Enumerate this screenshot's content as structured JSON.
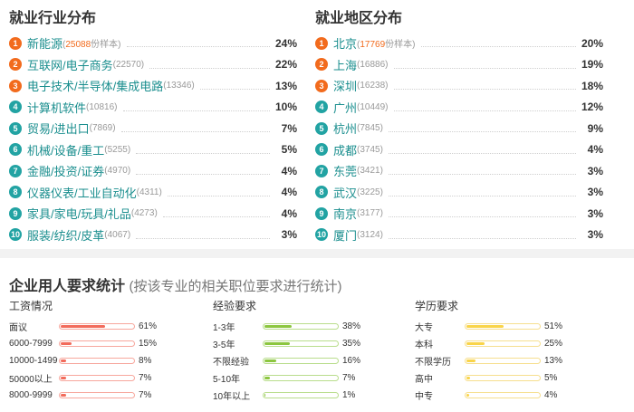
{
  "industry": {
    "title": "就业行业分布",
    "items": [
      {
        "rank": "1",
        "name": "新能源",
        "count": "25088",
        "unit": "份样本",
        "pct": "24%"
      },
      {
        "rank": "2",
        "name": "互联网/电子商务",
        "count": "22570",
        "unit": "",
        "pct": "22%"
      },
      {
        "rank": "3",
        "name": "电子技术/半导体/集成电路",
        "count": "13346",
        "unit": "",
        "pct": "13%"
      },
      {
        "rank": "4",
        "name": "计算机软件",
        "count": "10816",
        "unit": "",
        "pct": "10%"
      },
      {
        "rank": "5",
        "name": "贸易/进出口",
        "count": "7869",
        "unit": "",
        "pct": "7%"
      },
      {
        "rank": "6",
        "name": "机械/设备/重工",
        "count": "5255",
        "unit": "",
        "pct": "5%"
      },
      {
        "rank": "7",
        "name": "金融/投资/证券",
        "count": "4970",
        "unit": "",
        "pct": "4%"
      },
      {
        "rank": "8",
        "name": "仪器仪表/工业自动化",
        "count": "4311",
        "unit": "",
        "pct": "4%"
      },
      {
        "rank": "9",
        "name": "家具/家电/玩具/礼品",
        "count": "4273",
        "unit": "",
        "pct": "4%"
      },
      {
        "rank": "10",
        "name": "服装/纺织/皮革",
        "count": "4067",
        "unit": "",
        "pct": "3%"
      }
    ]
  },
  "region": {
    "title": "就业地区分布",
    "items": [
      {
        "rank": "1",
        "name": "北京",
        "count": "17769",
        "unit": "份样本",
        "pct": "20%"
      },
      {
        "rank": "2",
        "name": "上海",
        "count": "16886",
        "unit": "",
        "pct": "19%"
      },
      {
        "rank": "3",
        "name": "深圳",
        "count": "16238",
        "unit": "",
        "pct": "18%"
      },
      {
        "rank": "4",
        "name": "广州",
        "count": "10449",
        "unit": "",
        "pct": "12%"
      },
      {
        "rank": "5",
        "name": "杭州",
        "count": "7845",
        "unit": "",
        "pct": "9%"
      },
      {
        "rank": "6",
        "name": "成都",
        "count": "3745",
        "unit": "",
        "pct": "4%"
      },
      {
        "rank": "7",
        "name": "东莞",
        "count": "3421",
        "unit": "",
        "pct": "3%"
      },
      {
        "rank": "8",
        "name": "武汉",
        "count": "3225",
        "unit": "",
        "pct": "3%"
      },
      {
        "rank": "9",
        "name": "南京",
        "count": "3177",
        "unit": "",
        "pct": "3%"
      },
      {
        "rank": "10",
        "name": "厦门",
        "count": "3124",
        "unit": "",
        "pct": "3%"
      }
    ]
  },
  "requirements": {
    "title": "企业用人要求统计",
    "subtitle": "(按该专业的相关职位要求进行统计)",
    "salary": {
      "heading": "工资情况",
      "color": "#f26b5b",
      "track": "#f7a79d",
      "rows": [
        {
          "label": "面议",
          "value": "61%",
          "fraction": 0.61
        },
        {
          "label": "6000-7999",
          "value": "15%",
          "fraction": 0.15
        },
        {
          "label": "10000-14999",
          "value": "8%",
          "fraction": 0.08
        },
        {
          "label": "50000以上",
          "value": "7%",
          "fraction": 0.07
        },
        {
          "label": "8000-9999",
          "value": "7%",
          "fraction": 0.07
        }
      ]
    },
    "experience": {
      "heading": "经验要求",
      "color": "#8cc63f",
      "track": "#b9dd8c",
      "rows": [
        {
          "label": "1-3年",
          "value": "38%",
          "fraction": 0.38
        },
        {
          "label": "3-5年",
          "value": "35%",
          "fraction": 0.35
        },
        {
          "label": "不限经验",
          "value": "16%",
          "fraction": 0.16
        },
        {
          "label": "5-10年",
          "value": "7%",
          "fraction": 0.07
        },
        {
          "label": "10年以上",
          "value": "1%",
          "fraction": 0.01
        }
      ]
    },
    "education": {
      "heading": "学历要求",
      "color": "#f9d449",
      "track": "#f6df8f",
      "rows": [
        {
          "label": "大专",
          "value": "51%",
          "fraction": 0.51
        },
        {
          "label": "本科",
          "value": "25%",
          "fraction": 0.25
        },
        {
          "label": "不限学历",
          "value": "13%",
          "fraction": 0.13
        },
        {
          "label": "高中",
          "value": "5%",
          "fraction": 0.05
        },
        {
          "label": "中专",
          "value": "4%",
          "fraction": 0.04
        }
      ]
    }
  }
}
